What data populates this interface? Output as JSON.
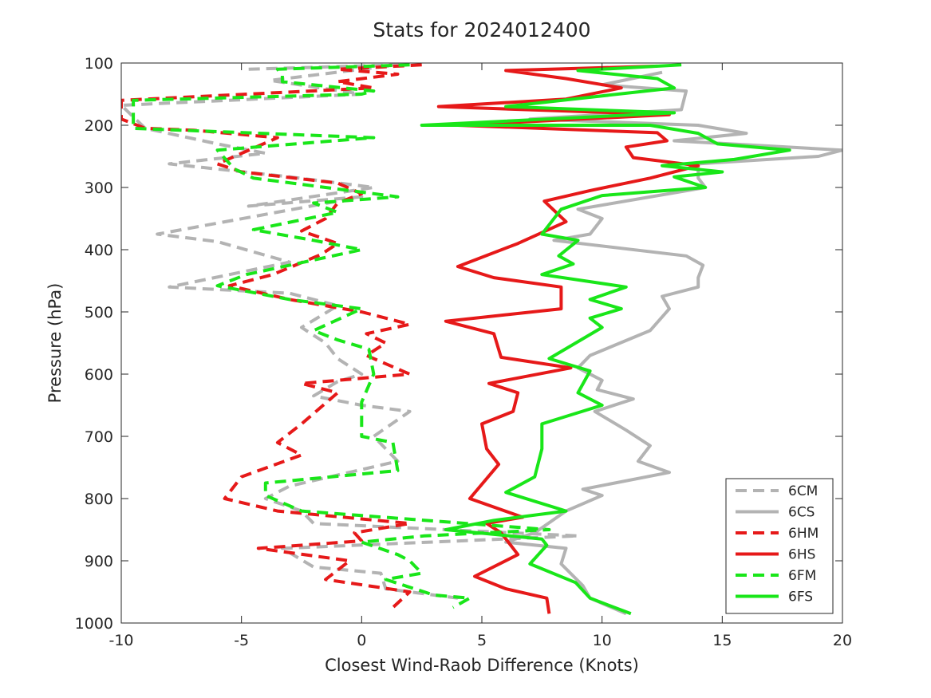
{
  "chart_data": {
    "type": "line",
    "title": "Stats for 2024012400",
    "xlabel": "Closest Wind-Raob Difference (Knots)",
    "ylabel": "Pressure (hPa)",
    "xlim": [
      -10,
      20
    ],
    "ylim": [
      100,
      1000
    ],
    "y_reversed": true,
    "xticks": [
      -10,
      -5,
      0,
      5,
      10,
      15,
      20
    ],
    "yticks": [
      100,
      200,
      300,
      400,
      500,
      600,
      700,
      800,
      900,
      1000
    ],
    "grid": false,
    "legend_position": "bottom-right",
    "series": [
      {
        "name": "6CM",
        "color": "#b3b3b3",
        "dash": "dashed",
        "points": [
          [
            -4.7,
            110
          ],
          [
            1.5,
            103
          ],
          [
            -3.8,
            128
          ],
          [
            0,
            150
          ],
          [
            -10,
            168
          ],
          [
            -9,
            205
          ],
          [
            -6,
            230
          ],
          [
            -4,
            245
          ],
          [
            -8,
            262
          ],
          [
            -3,
            283
          ],
          [
            0.5,
            300
          ],
          [
            -4.7,
            330
          ],
          [
            0,
            315
          ],
          [
            -8.5,
            375
          ],
          [
            -6,
            387
          ],
          [
            -3,
            420
          ],
          [
            -8,
            460
          ],
          [
            -3,
            470
          ],
          [
            -1,
            490
          ],
          [
            -2.5,
            525
          ],
          [
            -1.5,
            550
          ],
          [
            -1,
            575
          ],
          [
            0,
            600
          ],
          [
            -1,
            612
          ],
          [
            -2,
            635
          ],
          [
            0,
            650
          ],
          [
            2,
            660
          ],
          [
            0.5,
            700
          ],
          [
            1.5,
            740
          ],
          [
            -3,
            780
          ],
          [
            -4,
            800
          ],
          [
            -2.5,
            820
          ],
          [
            -2,
            840
          ],
          [
            9,
            860
          ],
          [
            -3.3,
            880
          ],
          [
            -2,
            910
          ],
          [
            0.8,
            920
          ],
          [
            1,
            945
          ],
          [
            4,
            960
          ],
          [
            4,
            970
          ]
        ]
      },
      {
        "name": "6CS",
        "color": "#b3b3b3",
        "dash": "solid",
        "points": [
          [
            12.5,
            115
          ],
          [
            10,
            135
          ],
          [
            13.5,
            145
          ],
          [
            13.3,
            175
          ],
          [
            7,
            190
          ],
          [
            14,
            200
          ],
          [
            16,
            213
          ],
          [
            13,
            225
          ],
          [
            20,
            240
          ],
          [
            19,
            250
          ],
          [
            14,
            262
          ],
          [
            14,
            285
          ],
          [
            14.3,
            300
          ],
          [
            9,
            335
          ],
          [
            10,
            350
          ],
          [
            9.5,
            375
          ],
          [
            8,
            385
          ],
          [
            13.5,
            410
          ],
          [
            14.2,
            425
          ],
          [
            14,
            445
          ],
          [
            14,
            460
          ],
          [
            12.5,
            475
          ],
          [
            12.8,
            495
          ],
          [
            12,
            530
          ],
          [
            9.5,
            570
          ],
          [
            9,
            590
          ],
          [
            10,
            610
          ],
          [
            9.8,
            625
          ],
          [
            11.3,
            640
          ],
          [
            9.7,
            660
          ],
          [
            11,
            690
          ],
          [
            12,
            715
          ],
          [
            11.5,
            740
          ],
          [
            12.8,
            758
          ],
          [
            9.2,
            785
          ],
          [
            10,
            795
          ],
          [
            8.5,
            820
          ],
          [
            7.2,
            855
          ],
          [
            6,
            870
          ],
          [
            8.5,
            880
          ],
          [
            8.3,
            905
          ],
          [
            9.2,
            940
          ],
          [
            9.5,
            960
          ],
          [
            11,
            985
          ]
        ]
      },
      {
        "name": "6HM",
        "color": "#e61919",
        "dash": "dashed",
        "points": [
          [
            2.5,
            103
          ],
          [
            -1,
            110
          ],
          [
            1.5,
            118
          ],
          [
            -1,
            130
          ],
          [
            0.5,
            140
          ],
          [
            -10,
            160
          ],
          [
            -10,
            190
          ],
          [
            -9,
            205
          ],
          [
            -7,
            208
          ],
          [
            -3.5,
            220
          ],
          [
            -6,
            262
          ],
          [
            -5,
            275
          ],
          [
            -1,
            293
          ],
          [
            0,
            310
          ],
          [
            -1,
            325
          ],
          [
            -1.5,
            350
          ],
          [
            -2.5,
            370
          ],
          [
            -1,
            390
          ],
          [
            -1.7,
            408
          ],
          [
            -3.7,
            440
          ],
          [
            -5.5,
            458
          ],
          [
            -3,
            480
          ],
          [
            0,
            500
          ],
          [
            2,
            520
          ],
          [
            0.2,
            535
          ],
          [
            1,
            550
          ],
          [
            0.2,
            570
          ],
          [
            2,
            600
          ],
          [
            -2.5,
            615
          ],
          [
            -1,
            630
          ],
          [
            -2.5,
            680
          ],
          [
            -3.5,
            710
          ],
          [
            -2.5,
            730
          ],
          [
            -5,
            765
          ],
          [
            -5.7,
            800
          ],
          [
            -3.5,
            820
          ],
          [
            2,
            840
          ],
          [
            -0.3,
            855
          ],
          [
            0,
            868
          ],
          [
            -4.3,
            880
          ],
          [
            -0.5,
            900
          ],
          [
            -1.5,
            930
          ],
          [
            2,
            950
          ],
          [
            1.3,
            975
          ]
        ]
      },
      {
        "name": "6HS",
        "color": "#e61919",
        "dash": "solid",
        "points": [
          [
            12.3,
            105
          ],
          [
            6,
            112
          ],
          [
            8.5,
            125
          ],
          [
            10.8,
            140
          ],
          [
            8.5,
            158
          ],
          [
            3.2,
            170
          ],
          [
            12.8,
            183
          ],
          [
            4,
            200
          ],
          [
            12.3,
            212
          ],
          [
            12.7,
            225
          ],
          [
            11,
            235
          ],
          [
            11.3,
            252
          ],
          [
            14,
            265
          ],
          [
            12,
            285
          ],
          [
            9.5,
            305
          ],
          [
            7.6,
            322
          ],
          [
            8.5,
            355
          ],
          [
            6.5,
            390
          ],
          [
            4,
            427
          ],
          [
            5.5,
            445
          ],
          [
            8.3,
            460
          ],
          [
            8.3,
            495
          ],
          [
            3.5,
            515
          ],
          [
            5.5,
            535
          ],
          [
            5.8,
            573
          ],
          [
            8.7,
            590
          ],
          [
            5.3,
            615
          ],
          [
            6.5,
            630
          ],
          [
            6.3,
            660
          ],
          [
            5,
            680
          ],
          [
            5.2,
            720
          ],
          [
            5.7,
            745
          ],
          [
            4.5,
            800
          ],
          [
            6.7,
            830
          ],
          [
            5.2,
            840
          ],
          [
            5.8,
            855
          ],
          [
            6.5,
            890
          ],
          [
            4.7,
            925
          ],
          [
            6,
            945
          ],
          [
            7.7,
            960
          ],
          [
            7.8,
            985
          ]
        ]
      },
      {
        "name": "6FM",
        "color": "#19e619",
        "dash": "dashed",
        "points": [
          [
            2,
            103
          ],
          [
            -3.5,
            110
          ],
          [
            -3.3,
            120
          ],
          [
            -3.3,
            130
          ],
          [
            0.5,
            145
          ],
          [
            0,
            150
          ],
          [
            -9.5,
            160
          ],
          [
            -9.5,
            205
          ],
          [
            0.5,
            220
          ],
          [
            -6,
            240
          ],
          [
            -5.3,
            270
          ],
          [
            -4.5,
            285
          ],
          [
            1.5,
            315
          ],
          [
            -2,
            325
          ],
          [
            -1,
            340
          ],
          [
            -4.5,
            368
          ],
          [
            -2,
            385
          ],
          [
            0,
            400
          ],
          [
            -4.8,
            440
          ],
          [
            -6,
            458
          ],
          [
            -3,
            480
          ],
          [
            0,
            495
          ],
          [
            -2,
            530
          ],
          [
            -1,
            545
          ],
          [
            0.3,
            560
          ],
          [
            0.5,
            600
          ],
          [
            0,
            645
          ],
          [
            0,
            700
          ],
          [
            1.3,
            710
          ],
          [
            1.5,
            755
          ],
          [
            -4,
            775
          ],
          [
            -4,
            795
          ],
          [
            -2.5,
            820
          ],
          [
            7.8,
            850
          ],
          [
            2.6,
            860
          ],
          [
            0,
            870
          ],
          [
            1.5,
            890
          ],
          [
            2,
            900
          ],
          [
            2.5,
            920
          ],
          [
            1,
            930
          ],
          [
            3,
            955
          ],
          [
            4.5,
            960
          ],
          [
            3.8,
            975
          ]
        ]
      },
      {
        "name": "6FS",
        "color": "#19e619",
        "dash": "solid",
        "points": [
          [
            13.3,
            103
          ],
          [
            9,
            112
          ],
          [
            12.3,
            125
          ],
          [
            13,
            140
          ],
          [
            6,
            170
          ],
          [
            13,
            180
          ],
          [
            2.5,
            200
          ],
          [
            12,
            200
          ],
          [
            14,
            213
          ],
          [
            14.8,
            230
          ],
          [
            17.8,
            240
          ],
          [
            15.5,
            255
          ],
          [
            12.5,
            265
          ],
          [
            15,
            275
          ],
          [
            13,
            283
          ],
          [
            14.3,
            300
          ],
          [
            10,
            313
          ],
          [
            8.3,
            335
          ],
          [
            7.5,
            375
          ],
          [
            9,
            385
          ],
          [
            8.2,
            410
          ],
          [
            8.8,
            423
          ],
          [
            7.5,
            440
          ],
          [
            11,
            460
          ],
          [
            9.5,
            480
          ],
          [
            10.8,
            495
          ],
          [
            9.5,
            510
          ],
          [
            10,
            525
          ],
          [
            7.8,
            575
          ],
          [
            9.5,
            595
          ],
          [
            9,
            630
          ],
          [
            10,
            650
          ],
          [
            7.5,
            680
          ],
          [
            7.5,
            720
          ],
          [
            7.2,
            765
          ],
          [
            6,
            790
          ],
          [
            8.5,
            820
          ],
          [
            5.5,
            835
          ],
          [
            3.5,
            850
          ],
          [
            7.5,
            865
          ],
          [
            7.7,
            875
          ],
          [
            7,
            905
          ],
          [
            8.9,
            935
          ],
          [
            9.5,
            960
          ],
          [
            11.2,
            985
          ]
        ]
      }
    ]
  }
}
